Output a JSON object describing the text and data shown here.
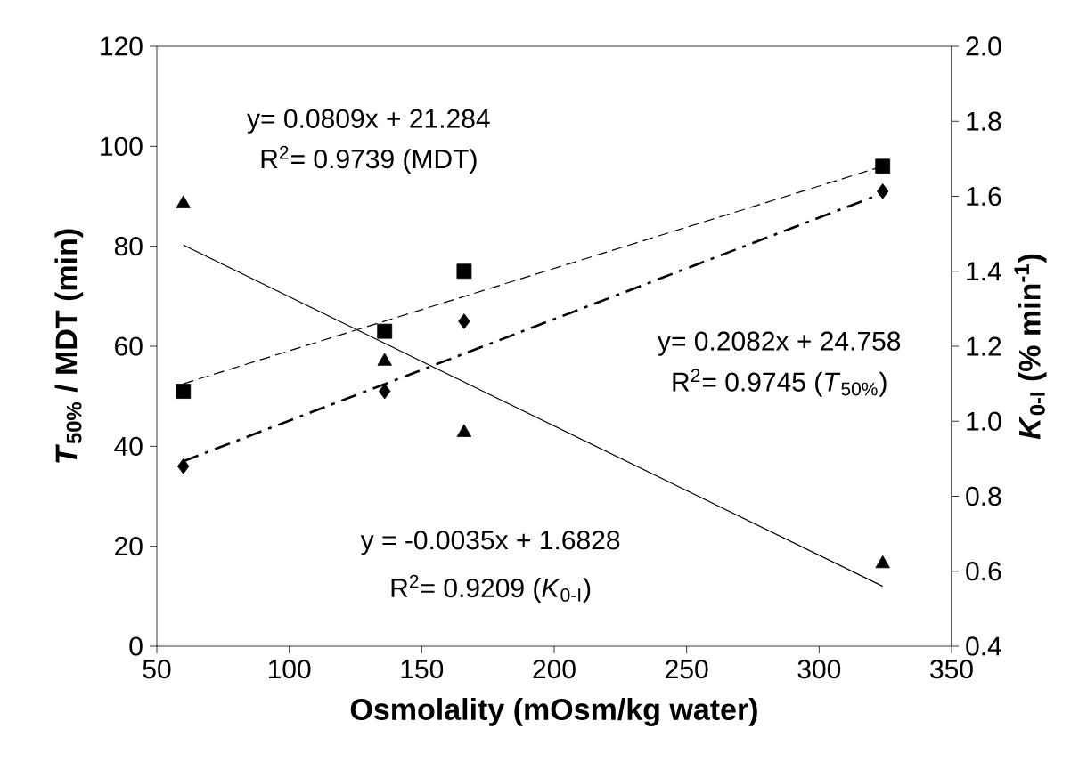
{
  "chart_data": {
    "type": "scatter",
    "xlabel": "Osmolality (mOsm/kg water)",
    "ylabel": "*T*$_{50%}$ / MDT (min)",
    "y2label": "*K*$_{0-I}$ (% min$^{-1}$)",
    "xlim": [
      50,
      350
    ],
    "xticks": [
      50,
      100,
      150,
      200,
      250,
      300,
      350
    ],
    "ylim": [
      0,
      120
    ],
    "yticks": [
      0,
      20,
      40,
      60,
      80,
      100,
      120
    ],
    "y2lim": [
      0.4,
      2.0
    ],
    "y2ticks": [
      0.4,
      0.6,
      0.8,
      {
        "value": 1.0,
        "label": "1.0"
      },
      1.2,
      1.4,
      1.6,
      1.8,
      {
        "value": 2.0,
        "label": "2.0"
      }
    ],
    "grid": false,
    "series": [
      {
        "marker": "square",
        "color": "#000000",
        "x": [
          60,
          136,
          166,
          324
        ],
        "values": [
          51,
          63,
          75,
          96
        ]
      },
      {
        "marker": "diamond",
        "color": "#000000",
        "x": [
          60,
          136,
          166,
          324
        ],
        "values": [
          36,
          51,
          65,
          91
        ]
      },
      {
        "marker": "triangle",
        "color": "#000000",
        "axis": "y2",
        "x": [
          60,
          136,
          166,
          324
        ],
        "values": [
          1.58,
          1.16,
          0.97,
          0.62
        ]
      },
      {
        "type": "line",
        "line_style": "dashed",
        "marker": "none",
        "color": "#000000",
        "x": [
          60,
          324
        ],
        "values": [
          52.5,
          96
        ]
      },
      {
        "type": "line",
        "line_style": "dashdot",
        "marker": "none",
        "color": "#000000",
        "x": [
          60,
          324
        ],
        "values": [
          37,
          90.6
        ]
      },
      {
        "type": "line",
        "line_style": "solid",
        "marker": "none",
        "color": "#000000",
        "axis": "y2",
        "x": [
          60,
          324
        ],
        "values": [
          1.47,
          0.56
        ]
      }
    ],
    "annotations": [
      "y= 0.0809x + 21.284",
      "R$^{2}$= 0.9739 (MDT)",
      "y= 0.2082x + 24.758",
      "R$^{2}$= 0.9745 (*T*$_{50%}$)",
      "y = -0.0035x + 1.6828",
      "R$^{2}$= 0.9209 (*K*$_{0-I}$)"
    ]
  }
}
